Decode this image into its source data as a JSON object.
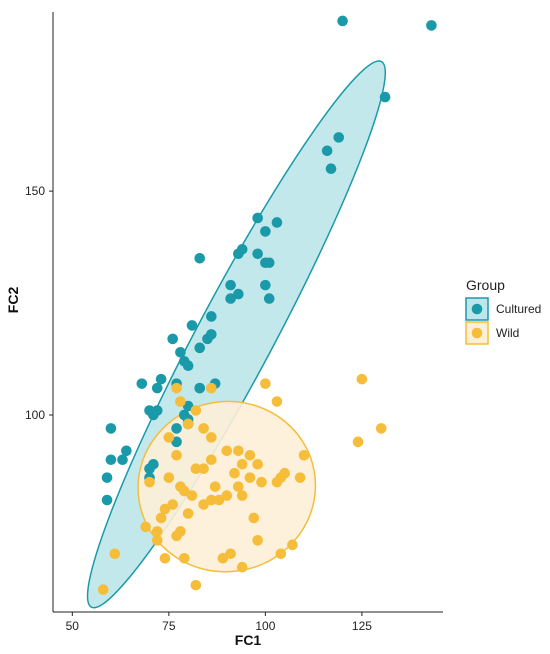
{
  "chart_data": {
    "type": "scatter",
    "xlabel": "FC1",
    "ylabel": "FC2",
    "xlim": [
      45,
      146
    ],
    "ylim": [
      56,
      190
    ],
    "xticks": [
      50,
      75,
      100,
      125
    ],
    "yticks": [
      100,
      150
    ],
    "grid": false,
    "legend": {
      "title": "Group",
      "position": "right",
      "entries": [
        "Cultured",
        "Wild"
      ]
    },
    "ellipses": true,
    "series": [
      {
        "name": "Cultured",
        "color": "#1a9aa8",
        "fill": "#bde6ea",
        "ellipse_stroke": "#1a9aa8",
        "points": [
          [
            120,
            188
          ],
          [
            143,
            187
          ],
          [
            131,
            171
          ],
          [
            119,
            162
          ],
          [
            116,
            159
          ],
          [
            117,
            155
          ],
          [
            98,
            144
          ],
          [
            103,
            143
          ],
          [
            100,
            141
          ],
          [
            98,
            136
          ],
          [
            94,
            137
          ],
          [
            93,
            136
          ],
          [
            83,
            135
          ],
          [
            100,
            134
          ],
          [
            101,
            134
          ],
          [
            91,
            129
          ],
          [
            93,
            127
          ],
          [
            100,
            129
          ],
          [
            91,
            126
          ],
          [
            101,
            126
          ],
          [
            86,
            122
          ],
          [
            81,
            120
          ],
          [
            86,
            118
          ],
          [
            85,
            117
          ],
          [
            76,
            117
          ],
          [
            83,
            115
          ],
          [
            78,
            114
          ],
          [
            79,
            112
          ],
          [
            80,
            111
          ],
          [
            68,
            107
          ],
          [
            72,
            106
          ],
          [
            73,
            108
          ],
          [
            83,
            106
          ],
          [
            77,
            107
          ],
          [
            83,
            106
          ],
          [
            87,
            107
          ],
          [
            80,
            102
          ],
          [
            79,
            100
          ],
          [
            72,
            101
          ],
          [
            70,
            101
          ],
          [
            71,
            100
          ],
          [
            80,
            99
          ],
          [
            77,
            97
          ],
          [
            80,
            98
          ],
          [
            60,
            97
          ],
          [
            77,
            94
          ],
          [
            64,
            92
          ],
          [
            63,
            90
          ],
          [
            60,
            90
          ],
          [
            71,
            89
          ],
          [
            70,
            88
          ],
          [
            59,
            86
          ],
          [
            70,
            86
          ],
          [
            59,
            81
          ]
        ]
      },
      {
        "name": "Wild",
        "color": "#f5bd3a",
        "fill": "#fdf0d7",
        "ellipse_stroke": "#f5bd3a",
        "points": [
          [
            125,
            108
          ],
          [
            77,
            106
          ],
          [
            100,
            107
          ],
          [
            86,
            106
          ],
          [
            78,
            103
          ],
          [
            103,
            103
          ],
          [
            82,
            101
          ],
          [
            130,
            97
          ],
          [
            124,
            94
          ],
          [
            80,
            98
          ],
          [
            75,
            95
          ],
          [
            84,
            97
          ],
          [
            86,
            95
          ],
          [
            93,
            92
          ],
          [
            90,
            92
          ],
          [
            96,
            91
          ],
          [
            77,
            91
          ],
          [
            110,
            91
          ],
          [
            98,
            89
          ],
          [
            94,
            89
          ],
          [
            86,
            90
          ],
          [
            82,
            88
          ],
          [
            84,
            88
          ],
          [
            92,
            87
          ],
          [
            105,
            87
          ],
          [
            75,
            86
          ],
          [
            96,
            86
          ],
          [
            104,
            86
          ],
          [
            109,
            86
          ],
          [
            99,
            85
          ],
          [
            103,
            85
          ],
          [
            70,
            85
          ],
          [
            93,
            84
          ],
          [
            78,
            84
          ],
          [
            87,
            84
          ],
          [
            79,
            83
          ],
          [
            81,
            82
          ],
          [
            90,
            82
          ],
          [
            88,
            81
          ],
          [
            94,
            82
          ],
          [
            86,
            81
          ],
          [
            84,
            80
          ],
          [
            76,
            80
          ],
          [
            74,
            79
          ],
          [
            73,
            77
          ],
          [
            97,
            77
          ],
          [
            80,
            78
          ],
          [
            69,
            75
          ],
          [
            78,
            74
          ],
          [
            72,
            74
          ],
          [
            77,
            73
          ],
          [
            72,
            72
          ],
          [
            98,
            72
          ],
          [
            107,
            71
          ],
          [
            104,
            69
          ],
          [
            74,
            68
          ],
          [
            79,
            68
          ],
          [
            89,
            68
          ],
          [
            91,
            69
          ],
          [
            61,
            69
          ],
          [
            94,
            66
          ],
          [
            82,
            62
          ],
          [
            58,
            61
          ]
        ]
      }
    ],
    "ellipse_params": [
      {
        "group": "Cultured",
        "cx": 92.5,
        "cy": 118,
        "rx": 80,
        "ry": 8.5,
        "angle_deg": 62
      },
      {
        "group": "Wild",
        "cx": 90,
        "cy": 84,
        "rx": 23,
        "ry": 19,
        "angle_deg": 10
      }
    ]
  }
}
